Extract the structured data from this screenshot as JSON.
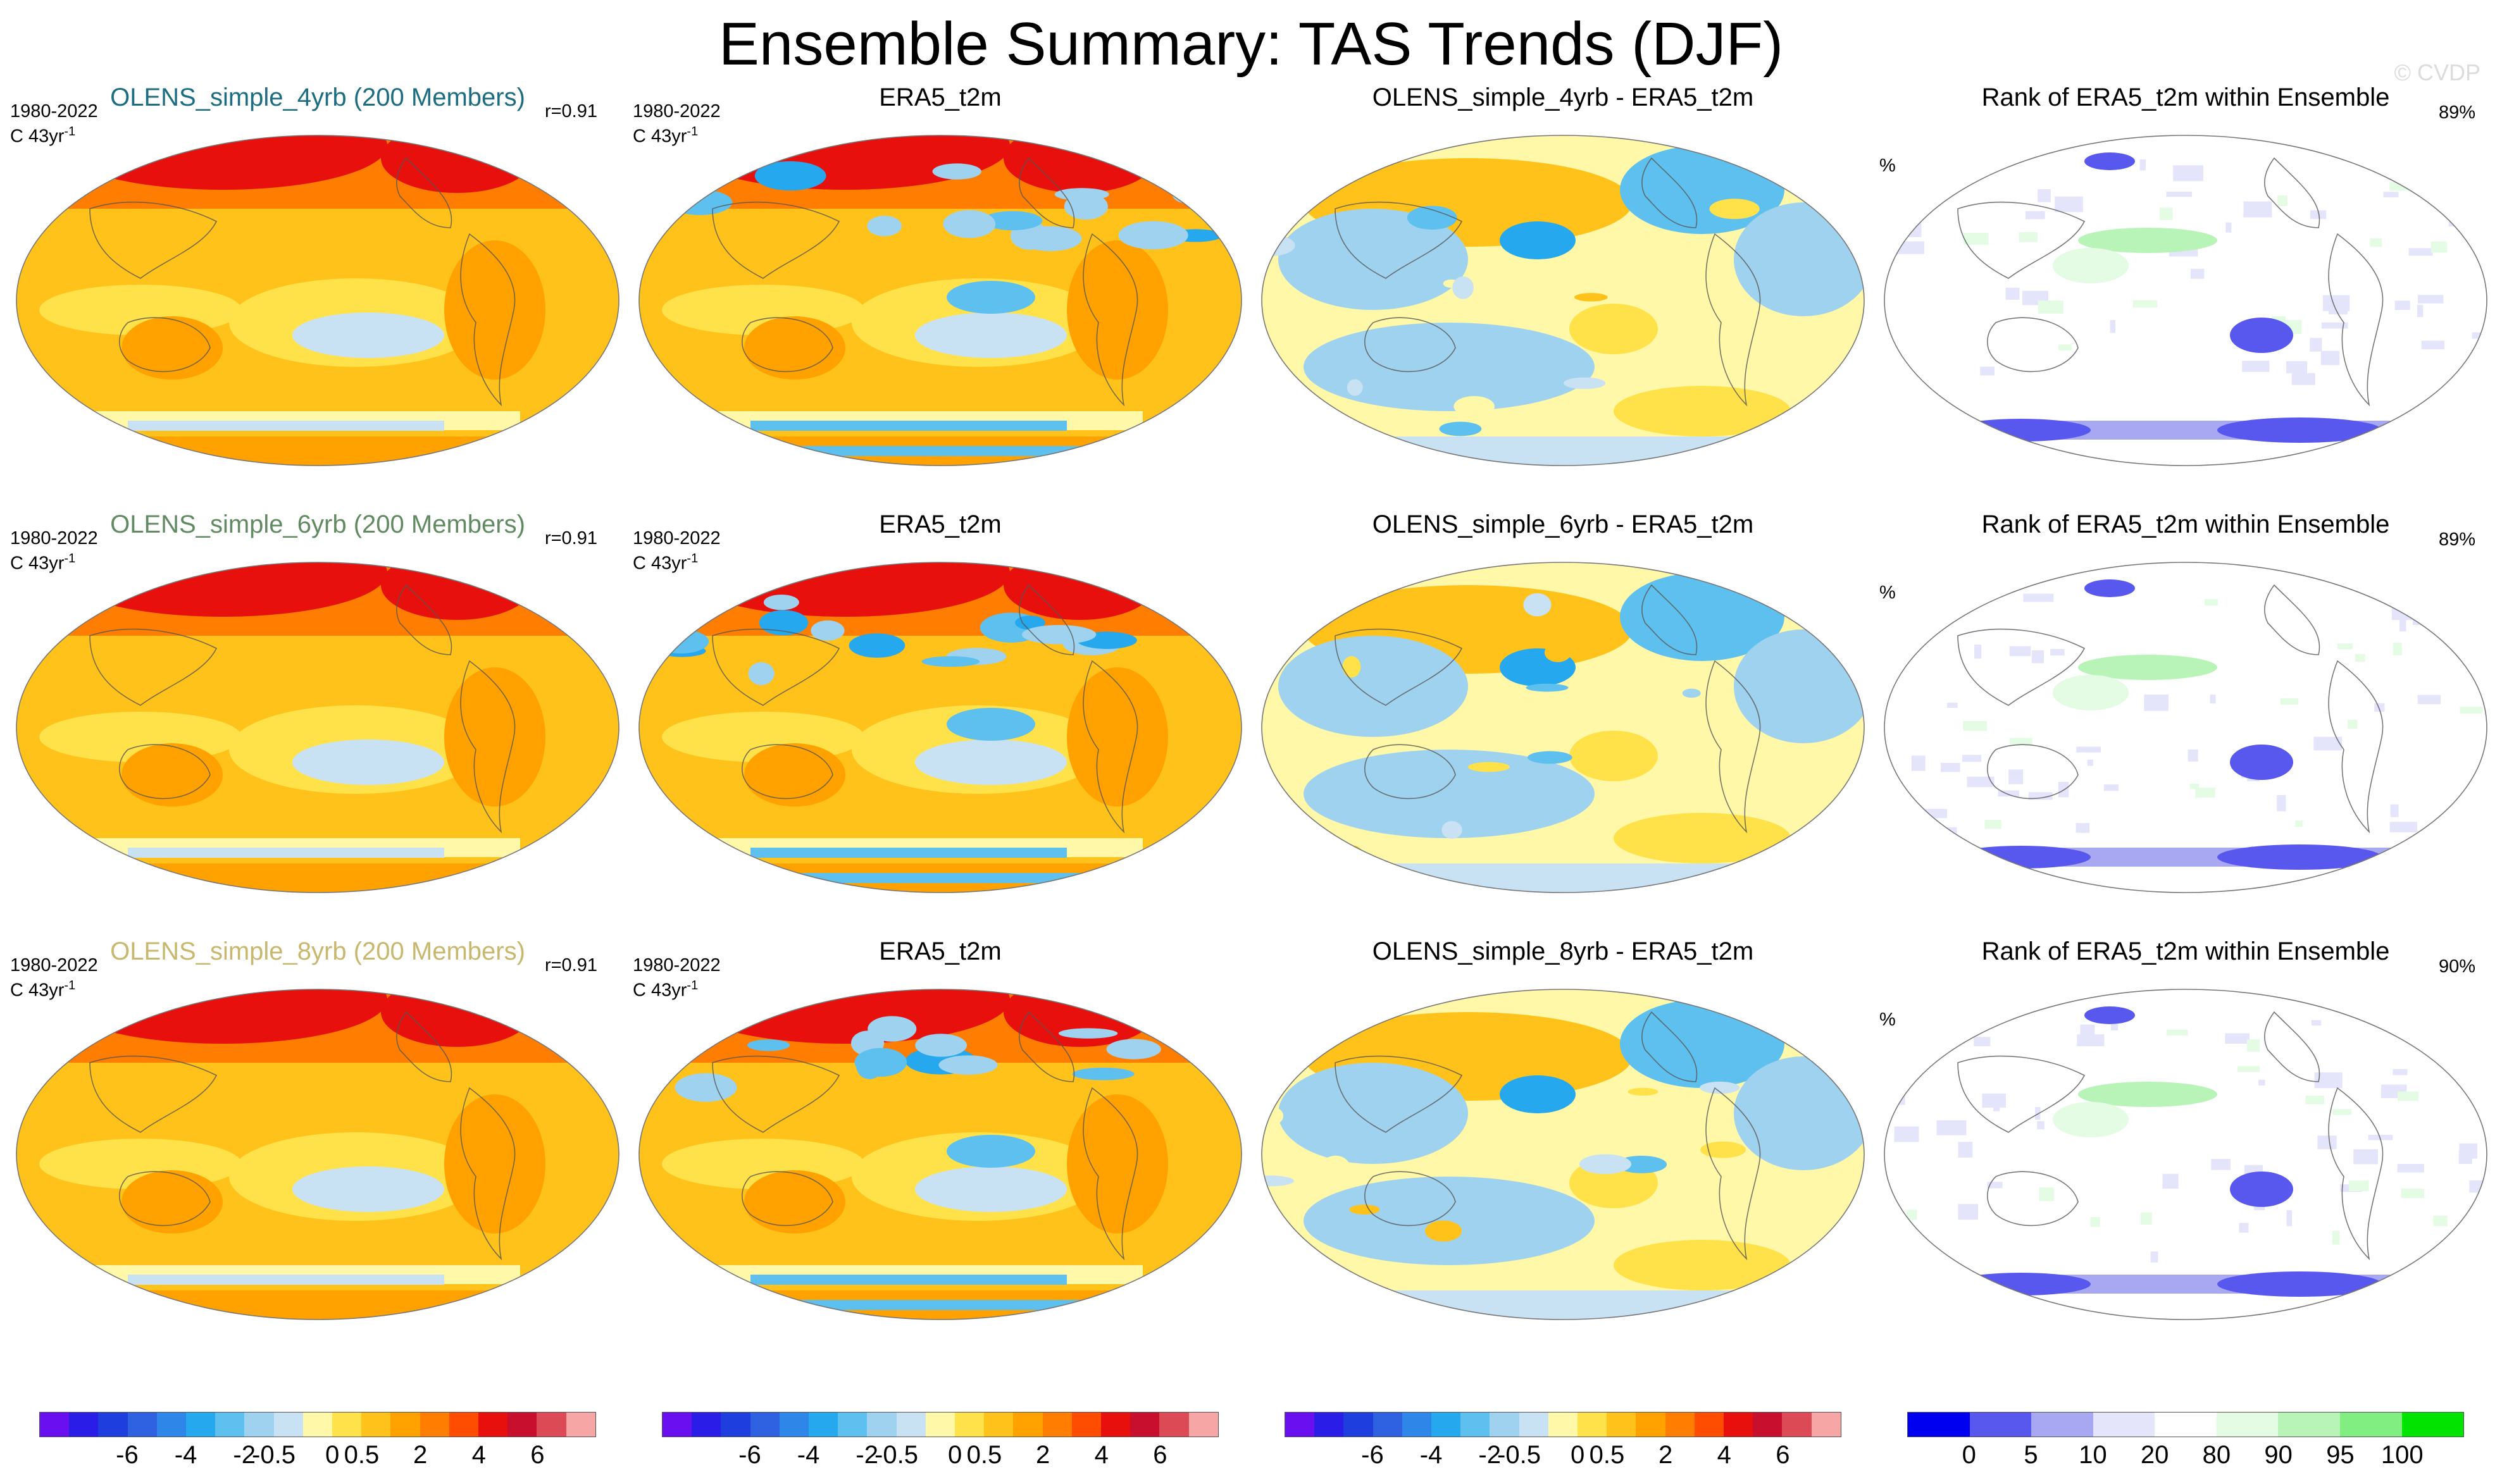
{
  "title": "Ensemble Summary: TAS Trends (DJF)",
  "watermark": "© CVDP",
  "colors": {
    "sequential": [
      "#6a10f0",
      "#2b1de8",
      "#1e3fde",
      "#2e62e0",
      "#2e87e8",
      "#25a8ee",
      "#5ec0ee",
      "#9fd2ee",
      "#c8e2f4",
      "#fff8a8",
      "#ffe14a",
      "#ffc21a",
      "#ffa200",
      "#ff7d00",
      "#ff4d00",
      "#e8100c",
      "#c8102e",
      "#dc4a55",
      "#f7a6a6"
    ],
    "rank": [
      "#0000f0",
      "#5858ee",
      "#a8a8f2",
      "#e4e4fa",
      "#ffffff",
      "#e4fbe4",
      "#b8f4b8",
      "#80ee80",
      "#00e400"
    ]
  },
  "rows": [
    {
      "model_title": "OLENS_simple_4yrb (200 Members)",
      "model_title_color": "#1c6c82",
      "period": "1980-2022",
      "units": "C 43yr",
      "units_sup": "-1",
      "r_value": "r=0.91",
      "obs_title": "ERA5_t2m",
      "diff_title": "OLENS_simple_4yrb - ERA5_t2m",
      "rank_title": "Rank of ERA5_t2m within Ensemble",
      "rank_pct_symbol": "%",
      "rank_pct_value": "89%"
    },
    {
      "model_title": "OLENS_simple_6yrb (200 Members)",
      "model_title_color": "#628a62",
      "period": "1980-2022",
      "units": "C 43yr",
      "units_sup": "-1",
      "r_value": "r=0.91",
      "obs_title": "ERA5_t2m",
      "diff_title": "OLENS_simple_6yrb - ERA5_t2m",
      "rank_title": "Rank of ERA5_t2m within Ensemble",
      "rank_pct_symbol": "%",
      "rank_pct_value": "89%"
    },
    {
      "model_title": "OLENS_simple_8yrb (200 Members)",
      "model_title_color": "#c8b86e",
      "period": "1980-2022",
      "units": "C 43yr",
      "units_sup": "-1",
      "r_value": "r=0.91",
      "obs_title": "ERA5_t2m",
      "diff_title": "OLENS_simple_8yrb - ERA5_t2m",
      "rank_title": "Rank of ERA5_t2m within Ensemble",
      "rank_pct_symbol": "%",
      "rank_pct_value": "90%"
    }
  ],
  "chart_data": {
    "type": "heatmap",
    "title": "Ensemble Summary: TAS Trends (DJF)",
    "projection": "global map (elliptical)",
    "layout": "3 rows x 4 columns of map panels",
    "trend_colorbar": {
      "levels": 19,
      "tick_labels": [
        "-6",
        "-4",
        "-2",
        "-0.5",
        "0",
        "0.5",
        "2",
        "4",
        "6"
      ],
      "tick_values": [
        -6,
        -4,
        -2,
        -0.5,
        0,
        0.5,
        2,
        4,
        6
      ],
      "units": "C 43yr-1"
    },
    "rank_colorbar": {
      "levels": 9,
      "tick_labels": [
        "0",
        "5",
        "10",
        "20",
        "80",
        "90",
        "95",
        "100"
      ],
      "tick_values": [
        0,
        5,
        10,
        20,
        80,
        90,
        95,
        100
      ],
      "units": "%"
    },
    "pattern_correlation": [
      0.91,
      0.91,
      0.91
    ],
    "rank_pct_within_20_80": [
      89,
      89,
      90
    ]
  }
}
